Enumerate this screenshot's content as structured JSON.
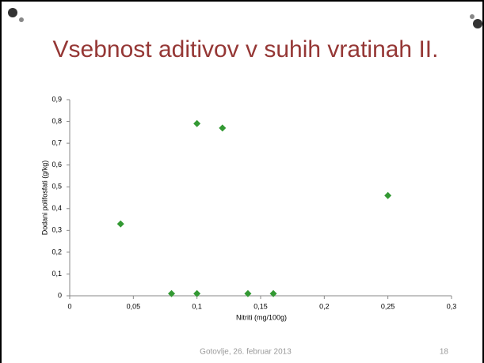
{
  "chart_data": {
    "type": "scatter",
    "title": "Vsebnost aditivov v suhih vratinah II.",
    "x_label": "Nitriti (mg/100g)",
    "y_label": "Dodani polifosfati (g/kg)",
    "color": "#339933",
    "x": [
      0.04,
      0.08,
      0.1,
      0.1,
      0.12,
      0.14,
      0.16,
      0.25
    ],
    "values": [
      0.33,
      0.01,
      0.79,
      0.01,
      0.77,
      0.01,
      0.01,
      0.46
    ],
    "xlim": [
      0,
      0.3
    ],
    "xticks": [
      0,
      {
        "value": 0.05,
        "label": "0,05"
      },
      {
        "value": 0.1,
        "label": "0,1"
      },
      {
        "value": 0.15,
        "label": "0,15"
      },
      {
        "value": 0.2,
        "label": "0,2"
      },
      {
        "value": 0.25,
        "label": "0,25"
      },
      {
        "value": 0.3,
        "label": "0,3"
      }
    ],
    "ylim": [
      0,
      0.9
    ],
    "yticks": [
      0,
      {
        "value": 0.1,
        "label": "0,1"
      },
      {
        "value": 0.2,
        "label": "0,2"
      },
      {
        "value": 0.3,
        "label": "0,3"
      },
      {
        "value": 0.4,
        "label": "0,4"
      },
      {
        "value": 0.5,
        "label": "0,5"
      },
      {
        "value": 0.6,
        "label": "0,6"
      },
      {
        "value": 0.7,
        "label": "0,7"
      },
      {
        "value": 0.8,
        "label": "0,8"
      },
      {
        "value": 0.9,
        "label": "0,9"
      }
    ],
    "grid": false
  },
  "footer": "Gotovlje, 26. februar 2013",
  "slide_number": "18"
}
